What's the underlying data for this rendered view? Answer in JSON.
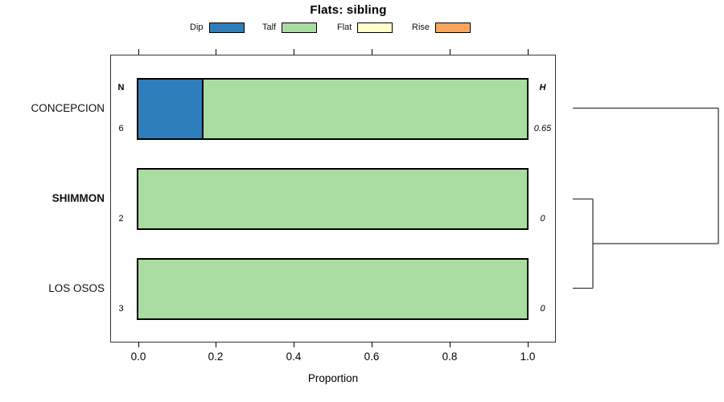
{
  "title": "Flats: sibling",
  "axis": {
    "xlabel": "Proportion",
    "tick_labels": [
      "0.0",
      "0.2",
      "0.4",
      "0.6",
      "0.8",
      "1.0"
    ]
  },
  "table": {
    "n_header": "N",
    "h_header": "H"
  },
  "rows": [
    {
      "label": "CONCEPCION",
      "bold": false,
      "n": "6",
      "h": "0.65"
    },
    {
      "label": "SHIMMON",
      "bold": true,
      "n": "2",
      "h": "0"
    },
    {
      "label": "LOS OSOS",
      "bold": false,
      "n": "3",
      "h": "0"
    }
  ],
  "colors": {
    "dip": "#2E7EBC",
    "talf": "#A9DCA0",
    "flat": "#FFFFC9",
    "rise": "#FAA55C",
    "ink": "#000000",
    "dendro": "#3a3a3a"
  },
  "chart_data": {
    "type": "bar",
    "orientation": "horizontal",
    "stacked": true,
    "title": "Flats: sibling",
    "xlabel": "Proportion",
    "xlim": [
      0,
      1
    ],
    "xticks": [
      0,
      0.2,
      0.4,
      0.6,
      0.8,
      1.0
    ],
    "categories": [
      "CONCEPCION",
      "SHIMMON",
      "LOS OSOS"
    ],
    "legend_position": "top",
    "series": [
      {
        "name": "Dip",
        "color": "#2E7EBC",
        "values": [
          0.167,
          0,
          0
        ]
      },
      {
        "name": "Talf",
        "color": "#A9DCA0",
        "values": [
          0.833,
          1,
          1
        ]
      },
      {
        "name": "Flat",
        "color": "#FFFFC9",
        "values": [
          0,
          0,
          0
        ]
      },
      {
        "name": "Rise",
        "color": "#FAA55C",
        "values": [
          0,
          0,
          0
        ]
      }
    ],
    "n_values": [
      6,
      2,
      3
    ],
    "h_values": [
      0.65,
      0,
      0
    ],
    "dendrogram": {
      "leaves": [
        "CONCEPCION",
        "SHIMMON",
        "LOS OSOS"
      ],
      "joins": [
        {
          "members": [
            "SHIMMON",
            "LOS OSOS"
          ],
          "height": 0
        },
        {
          "members": [
            "CONCEPCION",
            "SHIMMON+LOS OSOS"
          ],
          "height": 0.65
        }
      ]
    }
  }
}
